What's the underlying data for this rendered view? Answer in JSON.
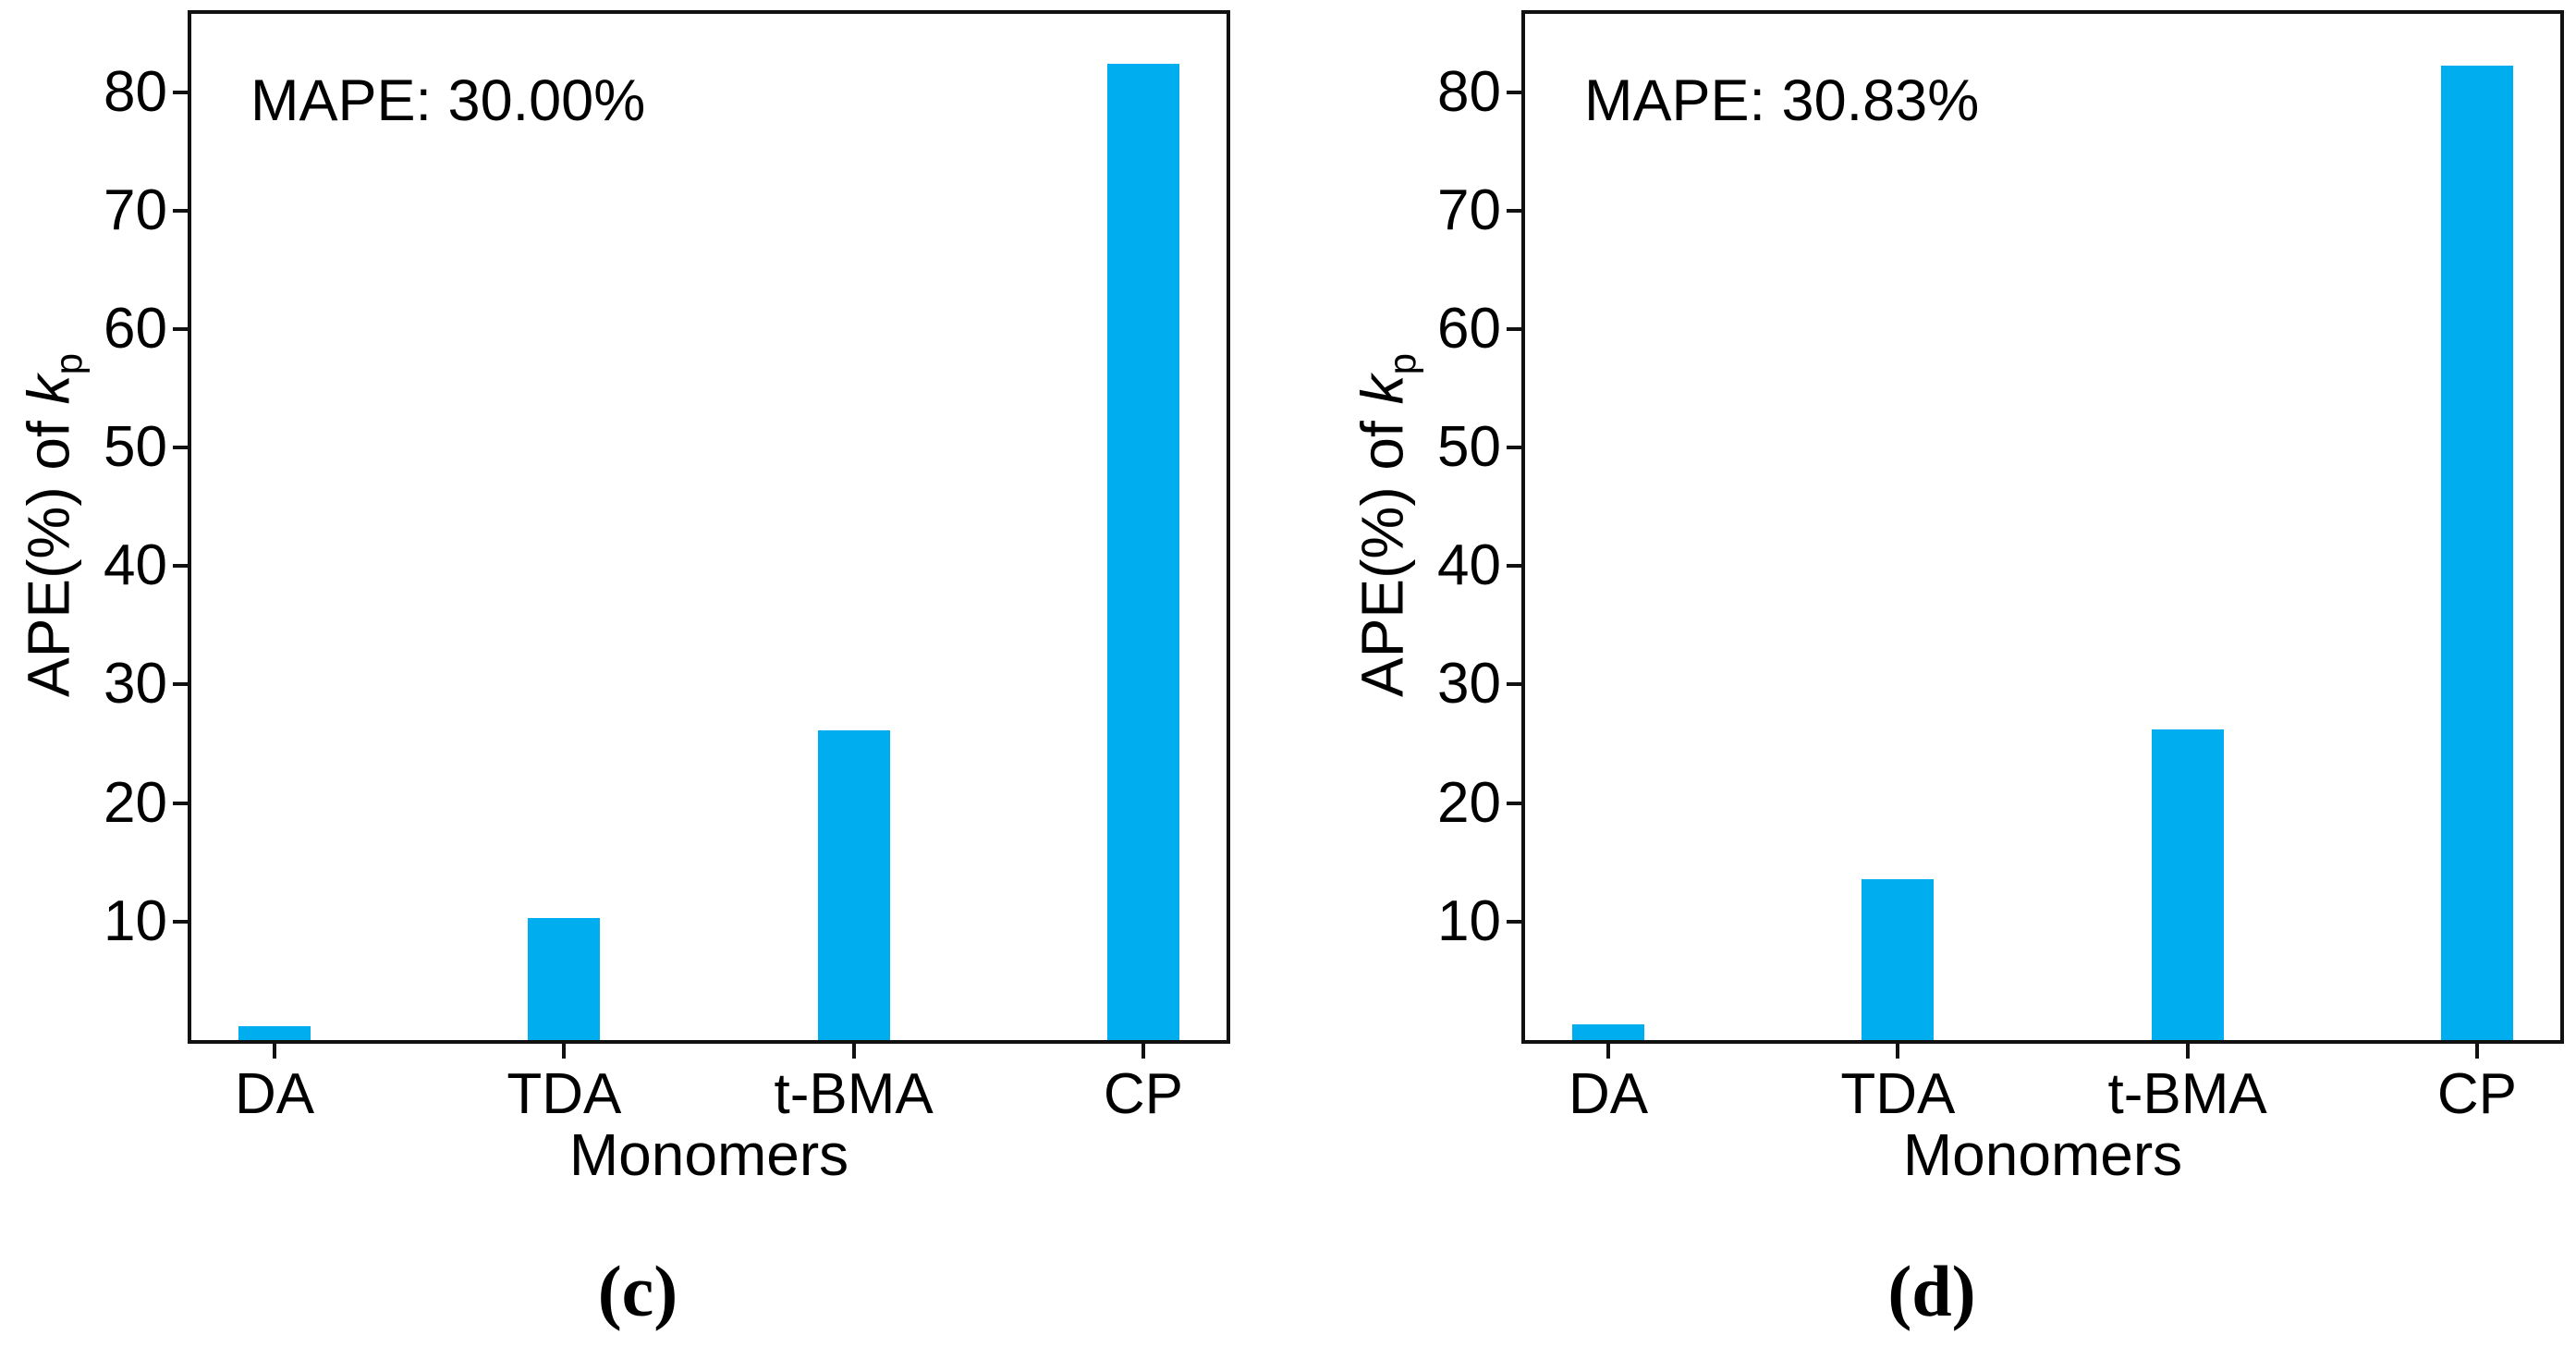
{
  "figure": {
    "ylabel_prefix": "APE(%) of ",
    "ylabel_math": "k",
    "ylabel_sub": "p",
    "bar_color": "#00AEEF",
    "axis_color": "#111111"
  },
  "chart_data": [
    {
      "type": "bar",
      "panel_caption": "(c)",
      "annotation": "MAPE: 30.00%",
      "title": "",
      "xlabel": "Monomers",
      "ylabel": "APE(%) of kp",
      "categories": [
        "DA",
        "TDA",
        "t-BMA",
        "CP"
      ],
      "values": [
        1.2,
        10.3,
        26.1,
        82.4
      ],
      "ylim": [
        0,
        86.6
      ],
      "yticks": [
        10,
        20,
        30,
        40,
        50,
        60,
        70,
        80
      ],
      "grid": false,
      "legend": "none"
    },
    {
      "type": "bar",
      "panel_caption": "(d)",
      "annotation": "MAPE: 30.83%",
      "title": "",
      "xlabel": "Monomers",
      "ylabel": "APE(%) of kp",
      "categories": [
        "DA",
        "TDA",
        "t-BMA",
        "CP"
      ],
      "values": [
        1.3,
        13.6,
        26.2,
        82.2
      ],
      "ylim": [
        0,
        86.6
      ],
      "yticks": [
        10,
        20,
        30,
        40,
        50,
        60,
        70,
        80
      ],
      "grid": false,
      "legend": "none"
    }
  ]
}
